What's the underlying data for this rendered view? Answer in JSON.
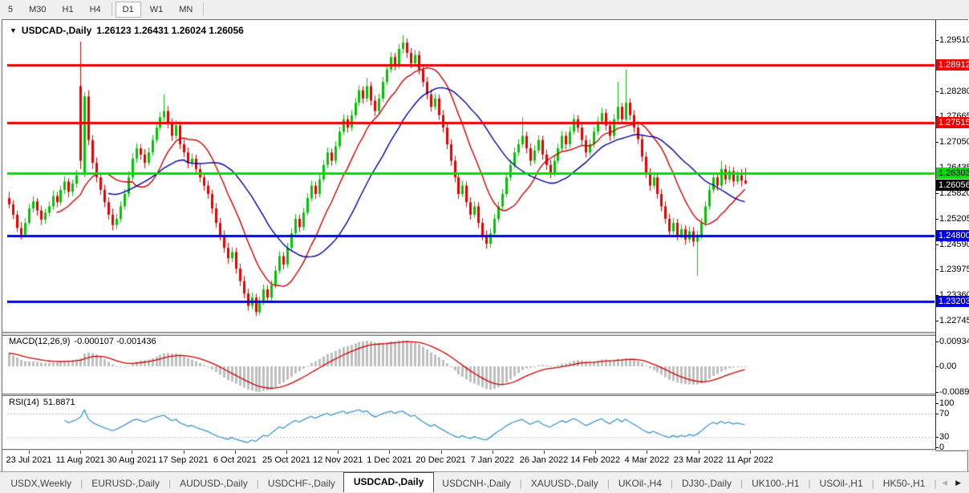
{
  "toolbar": {
    "timeframes": [
      {
        "label": "5",
        "active": false
      },
      {
        "label": "M30",
        "active": false
      },
      {
        "label": "H1",
        "active": false
      },
      {
        "label": "H4",
        "active": false
      },
      {
        "label": "D1",
        "active": true
      },
      {
        "label": "W1",
        "active": false
      },
      {
        "label": "MN",
        "active": false
      }
    ]
  },
  "chart": {
    "title_symbol": "USDCAD-,Daily",
    "title_ohlc": "1.26123 1.26431 1.26024 1.26056",
    "collapse_icon": "▼",
    "price_axis_ticks": [
      "1.29510",
      "1.28280",
      "1.27665",
      "1.27050",
      "1.26435",
      "1.25820",
      "1.25205",
      "1.24590",
      "1.23975",
      "1.23360",
      "1.22745"
    ],
    "price_badges": [
      {
        "text": "1.28912",
        "price": 1.28912,
        "bg": "#EE0000",
        "fg": "#FFFFFF"
      },
      {
        "text": "1.27515",
        "price": 1.27515,
        "bg": "#EE0000",
        "fg": "#FFFFFF"
      },
      {
        "text": "1.26303",
        "price": 1.26303,
        "bg": "#00DD00",
        "fg": "#000000"
      },
      {
        "text": "1.26056",
        "price": 1.26056,
        "bg": "#000000",
        "fg": "#FFFFFF"
      },
      {
        "text": "1.24800",
        "price": 1.248,
        "bg": "#0000EE",
        "fg": "#FFFFFF"
      },
      {
        "text": "1.23203",
        "price": 1.23203,
        "bg": "#0000EE",
        "fg": "#FFFFFF"
      }
    ]
  },
  "macd": {
    "name": "MACD(12,26,9)",
    "values": "-0.000107 -0.001436",
    "axis": [
      "0.009345",
      "0.00",
      "-0.008902"
    ],
    "histogram_color": "#BEBEBE",
    "signal_color": "#CC0000"
  },
  "rsi": {
    "name": "RSI(14)",
    "value": "51.8871",
    "axis": [
      "100",
      "70",
      "30",
      "0"
    ],
    "levels": [
      70,
      30
    ],
    "line_color": "#3E96D2"
  },
  "time_axis": {
    "labels": [
      "23 Jul 2021",
      "11 Aug 2021",
      "30 Aug 2021",
      "17 Sep 2021",
      "6 Oct 2021",
      "25 Oct 2021",
      "12 Nov 2021",
      "1 Dec 2021",
      "20 Dec 2021",
      "7 Jan 2022",
      "26 Jan 2022",
      "14 Feb 2022",
      "4 Mar 2022",
      "23 Mar 2022",
      "11 Apr 2022"
    ]
  },
  "tabs": {
    "items": [
      {
        "label": "USDX,Weekly",
        "active": false
      },
      {
        "label": "EURUSD-,Daily",
        "active": false
      },
      {
        "label": "AUDUSD-,Daily",
        "active": false
      },
      {
        "label": "USDCHF-,Daily",
        "active": false
      },
      {
        "label": "USDCAD-,Daily",
        "active": true
      },
      {
        "label": "USDCNH-,Daily",
        "active": false
      },
      {
        "label": "XAUUSD-,Daily",
        "active": false
      },
      {
        "label": "UKOil-,H4",
        "active": false
      },
      {
        "label": "DJ30-,Daily",
        "active": false
      },
      {
        "label": "UK100-,H1",
        "active": false
      },
      {
        "label": "USOil-,H1",
        "active": false
      },
      {
        "label": "HK50-,H1",
        "active": false
      }
    ],
    "scroll_left_icon": "◀",
    "scroll_right_icon": "▶"
  },
  "chart_data": {
    "type": "candlestick",
    "symbol": "USDCAD-",
    "timeframe": "Daily",
    "last_bar": {
      "open": "1.26123",
      "high": "1.26431",
      "low": "1.26024",
      "close": "1.26056"
    },
    "bull_color": "#00C400",
    "bear_color": "#E60000",
    "horizontal_levels": [
      {
        "price": 1.28912,
        "color": "#EE0000"
      },
      {
        "price": 1.27515,
        "color": "#EE0000"
      },
      {
        "price": 1.26303,
        "color": "#00DD00"
      },
      {
        "price": 1.248,
        "color": "#0000EE"
      },
      {
        "price": 1.23203,
        "color": "#0000EE"
      }
    ],
    "overlays": [
      {
        "name": "ma-fast",
        "type": "sma",
        "period": 13,
        "color": "#CC0000"
      },
      {
        "name": "ma-slow",
        "type": "sma",
        "period": 26,
        "color": "#000099"
      }
    ],
    "ylim": [
      1.22475,
      1.29955
    ],
    "macd_ylim": [
      -0.008902,
      0.009345
    ],
    "candles": [
      [
        1.257,
        1.2585,
        1.2545,
        1.2555
      ],
      [
        1.2555,
        1.2565,
        1.252,
        1.253
      ],
      [
        1.253,
        1.254,
        1.2488,
        1.2498
      ],
      [
        1.2498,
        1.2512,
        1.247,
        1.2482
      ],
      [
        1.2482,
        1.2522,
        1.2475,
        1.251
      ],
      [
        1.251,
        1.2555,
        1.2505,
        1.2545
      ],
      [
        1.2545,
        1.2575,
        1.2535,
        1.2562
      ],
      [
        1.2562,
        1.257,
        1.2528,
        1.254
      ],
      [
        1.254,
        1.2552,
        1.2505,
        1.2518
      ],
      [
        1.2518,
        1.2545,
        1.2508,
        1.2535
      ],
      [
        1.2535,
        1.2562,
        1.2525,
        1.255
      ],
      [
        1.255,
        1.2588,
        1.2542,
        1.2575
      ],
      [
        1.2575,
        1.2585,
        1.2548,
        1.256
      ],
      [
        1.256,
        1.26,
        1.2552,
        1.259
      ],
      [
        1.259,
        1.2622,
        1.258,
        1.261
      ],
      [
        1.261,
        1.2618,
        1.2572,
        1.2585
      ],
      [
        1.2585,
        1.2615,
        1.2575,
        1.2605
      ],
      [
        1.2605,
        1.2638,
        1.2595,
        1.2625
      ],
      [
        1.284,
        1.2947,
        1.264,
        1.266
      ],
      [
        1.263,
        1.2825,
        1.262,
        1.2815
      ],
      [
        1.2815,
        1.283,
        1.2698,
        1.271
      ],
      [
        1.271,
        1.2722,
        1.264,
        1.2655
      ],
      [
        1.2655,
        1.2668,
        1.2608,
        1.262
      ],
      [
        1.262,
        1.2632,
        1.2578,
        1.259
      ],
      [
        1.259,
        1.2602,
        1.2548,
        1.256
      ],
      [
        1.256,
        1.2572,
        1.2518,
        1.253
      ],
      [
        1.253,
        1.2545,
        1.2492,
        1.2505
      ],
      [
        1.2505,
        1.2532,
        1.2495,
        1.252
      ],
      [
        1.252,
        1.2562,
        1.2512,
        1.255
      ],
      [
        1.255,
        1.2592,
        1.2542,
        1.258
      ],
      [
        1.258,
        1.2635,
        1.2572,
        1.262
      ],
      [
        1.262,
        1.2678,
        1.2612,
        1.2665
      ],
      [
        1.2665,
        1.2702,
        1.2655,
        1.269
      ],
      [
        1.269,
        1.27,
        1.2662,
        1.2675
      ],
      [
        1.2675,
        1.2688,
        1.2642,
        1.2655
      ],
      [
        1.2655,
        1.2692,
        1.2648,
        1.268
      ],
      [
        1.268,
        1.2722,
        1.2672,
        1.271
      ],
      [
        1.271,
        1.2752,
        1.2702,
        1.274
      ],
      [
        1.274,
        1.2778,
        1.2732,
        1.2765
      ],
      [
        1.2765,
        1.282,
        1.2755,
        1.278
      ],
      [
        1.278,
        1.2792,
        1.2738,
        1.275
      ],
      [
        1.275,
        1.2762,
        1.2708,
        1.272
      ],
      [
        1.272,
        1.2758,
        1.2712,
        1.2745
      ],
      [
        1.2745,
        1.2755,
        1.2688,
        1.27
      ],
      [
        1.27,
        1.2712,
        1.2668,
        1.268
      ],
      [
        1.268,
        1.2692,
        1.2642,
        1.2655
      ],
      [
        1.2655,
        1.2678,
        1.2645,
        1.2665
      ],
      [
        1.2665,
        1.2675,
        1.2628,
        1.264
      ],
      [
        1.264,
        1.2652,
        1.2608,
        1.262
      ],
      [
        1.262,
        1.2632,
        1.2588,
        1.26
      ],
      [
        1.26,
        1.2612,
        1.2568,
        1.258
      ],
      [
        1.258,
        1.259,
        1.2532,
        1.2545
      ],
      [
        1.2545,
        1.2558,
        1.2498,
        1.251
      ],
      [
        1.251,
        1.2522,
        1.2468,
        1.248
      ],
      [
        1.248,
        1.2492,
        1.2438,
        1.245
      ],
      [
        1.245,
        1.2462,
        1.2412,
        1.2425
      ],
      [
        1.2425,
        1.2452,
        1.2415,
        1.244
      ],
      [
        1.244,
        1.245,
        1.2388,
        1.24
      ],
      [
        1.24,
        1.2412,
        1.2358,
        1.237
      ],
      [
        1.237,
        1.2382,
        1.2328,
        1.234
      ],
      [
        1.234,
        1.2352,
        1.2298,
        1.231
      ],
      [
        1.231,
        1.2342,
        1.2302,
        1.233
      ],
      [
        1.233,
        1.234,
        1.2285,
        1.2295
      ],
      [
        1.2295,
        1.2332,
        1.2288,
        1.232
      ],
      [
        1.232,
        1.2362,
        1.2312,
        1.235
      ],
      [
        1.235,
        1.236,
        1.2318,
        1.233
      ],
      [
        1.233,
        1.2372,
        1.2322,
        1.236
      ],
      [
        1.236,
        1.2407,
        1.2352,
        1.2395
      ],
      [
        1.2395,
        1.2442,
        1.2388,
        1.243
      ],
      [
        1.243,
        1.244,
        1.2398,
        1.241
      ],
      [
        1.241,
        1.2462,
        1.2402,
        1.245
      ],
      [
        1.245,
        1.2497,
        1.2442,
        1.2485
      ],
      [
        1.2485,
        1.2532,
        1.2478,
        1.252
      ],
      [
        1.252,
        1.253,
        1.2488,
        1.25
      ],
      [
        1.25,
        1.2547,
        1.2492,
        1.2535
      ],
      [
        1.2535,
        1.2582,
        1.2528,
        1.257
      ],
      [
        1.257,
        1.2612,
        1.2562,
        1.26
      ],
      [
        1.26,
        1.261,
        1.2568,
        1.258
      ],
      [
        1.258,
        1.2627,
        1.2572,
        1.2615
      ],
      [
        1.2615,
        1.2662,
        1.2608,
        1.265
      ],
      [
        1.265,
        1.2692,
        1.2642,
        1.268
      ],
      [
        1.268,
        1.269,
        1.2648,
        1.266
      ],
      [
        1.266,
        1.2707,
        1.2652,
        1.2695
      ],
      [
        1.2695,
        1.2742,
        1.2688,
        1.273
      ],
      [
        1.273,
        1.2772,
        1.2722,
        1.276
      ],
      [
        1.276,
        1.277,
        1.2728,
        1.274
      ],
      [
        1.274,
        1.2782,
        1.2732,
        1.277
      ],
      [
        1.277,
        1.2812,
        1.2762,
        1.28
      ],
      [
        1.28,
        1.2842,
        1.2792,
        1.283
      ],
      [
        1.283,
        1.284,
        1.2798,
        1.281
      ],
      [
        1.281,
        1.286,
        1.2802,
        1.284
      ],
      [
        1.284,
        1.285,
        1.2793,
        1.2805
      ],
      [
        1.2805,
        1.2817,
        1.2768,
        1.278
      ],
      [
        1.278,
        1.2822,
        1.2772,
        1.281
      ],
      [
        1.281,
        1.2862,
        1.2802,
        1.285
      ],
      [
        1.285,
        1.2892,
        1.2842,
        1.288
      ],
      [
        1.288,
        1.2922,
        1.2872,
        1.291
      ],
      [
        1.291,
        1.292,
        1.2878,
        1.289
      ],
      [
        1.289,
        1.2942,
        1.2882,
        1.293
      ],
      [
        1.293,
        1.2963,
        1.292,
        1.2945
      ],
      [
        1.2945,
        1.2955,
        1.2908,
        1.292
      ],
      [
        1.292,
        1.2932,
        1.2883,
        1.2895
      ],
      [
        1.2895,
        1.2927,
        1.2887,
        1.2915
      ],
      [
        1.2915,
        1.2925,
        1.2868,
        1.288
      ],
      [
        1.288,
        1.2892,
        1.2838,
        1.285
      ],
      [
        1.285,
        1.2862,
        1.2808,
        1.282
      ],
      [
        1.282,
        1.2832,
        1.2778,
        1.279
      ],
      [
        1.279,
        1.2822,
        1.2782,
        1.281
      ],
      [
        1.281,
        1.282,
        1.2758,
        1.277
      ],
      [
        1.277,
        1.2782,
        1.2728,
        1.274
      ],
      [
        1.274,
        1.2752,
        1.2688,
        1.27
      ],
      [
        1.27,
        1.2712,
        1.2648,
        1.266
      ],
      [
        1.266,
        1.2672,
        1.2608,
        1.262
      ],
      [
        1.262,
        1.2632,
        1.2568,
        1.258
      ],
      [
        1.258,
        1.2612,
        1.2572,
        1.26
      ],
      [
        1.26,
        1.261,
        1.2548,
        1.256
      ],
      [
        1.256,
        1.2572,
        1.2518,
        1.253
      ],
      [
        1.253,
        1.2562,
        1.2522,
        1.255
      ],
      [
        1.255,
        1.256,
        1.2498,
        1.251
      ],
      [
        1.251,
        1.2522,
        1.2468,
        1.248
      ],
      [
        1.248,
        1.2492,
        1.2448,
        1.246
      ],
      [
        1.246,
        1.2497,
        1.245,
        1.2485
      ],
      [
        1.2485,
        1.2532,
        1.2478,
        1.252
      ],
      [
        1.252,
        1.2562,
        1.2512,
        1.255
      ],
      [
        1.255,
        1.2592,
        1.2542,
        1.258
      ],
      [
        1.258,
        1.2632,
        1.2572,
        1.262
      ],
      [
        1.262,
        1.2662,
        1.2612,
        1.265
      ],
      [
        1.265,
        1.2692,
        1.2642,
        1.268
      ],
      [
        1.268,
        1.2712,
        1.2672,
        1.27
      ],
      [
        1.27,
        1.2765,
        1.2692,
        1.272
      ],
      [
        1.272,
        1.273,
        1.2678,
        1.269
      ],
      [
        1.269,
        1.2702,
        1.2648,
        1.266
      ],
      [
        1.266,
        1.2697,
        1.2652,
        1.2685
      ],
      [
        1.2685,
        1.2722,
        1.2678,
        1.271
      ],
      [
        1.271,
        1.272,
        1.2663,
        1.2675
      ],
      [
        1.2675,
        1.2687,
        1.2638,
        1.265
      ],
      [
        1.265,
        1.2662,
        1.2618,
        1.263
      ],
      [
        1.263,
        1.2672,
        1.2622,
        1.266
      ],
      [
        1.266,
        1.2702,
        1.2652,
        1.269
      ],
      [
        1.269,
        1.2732,
        1.2682,
        1.272
      ],
      [
        1.272,
        1.273,
        1.2688,
        1.27
      ],
      [
        1.27,
        1.2742,
        1.2692,
        1.273
      ],
      [
        1.273,
        1.2772,
        1.2722,
        1.276
      ],
      [
        1.276,
        1.277,
        1.2728,
        1.274
      ],
      [
        1.274,
        1.2752,
        1.2698,
        1.271
      ],
      [
        1.271,
        1.2722,
        1.2668,
        1.268
      ],
      [
        1.268,
        1.2712,
        1.2672,
        1.27
      ],
      [
        1.27,
        1.2742,
        1.2692,
        1.273
      ],
      [
        1.273,
        1.2767,
        1.2722,
        1.2755
      ],
      [
        1.2755,
        1.2787,
        1.2748,
        1.2775
      ],
      [
        1.2775,
        1.2785,
        1.2733,
        1.2745
      ],
      [
        1.2745,
        1.2757,
        1.2708,
        1.272
      ],
      [
        1.272,
        1.2772,
        1.2712,
        1.276
      ],
      [
        1.276,
        1.285,
        1.2752,
        1.279
      ],
      [
        1.279,
        1.28,
        1.2748,
        1.276
      ],
      [
        1.276,
        1.288,
        1.2752,
        1.28
      ],
      [
        1.28,
        1.281,
        1.2758,
        1.277
      ],
      [
        1.277,
        1.2782,
        1.2728,
        1.274
      ],
      [
        1.274,
        1.2755,
        1.27,
        1.2712
      ],
      [
        1.2712,
        1.2722,
        1.2658,
        1.267
      ],
      [
        1.267,
        1.2682,
        1.2618,
        1.263
      ],
      [
        1.263,
        1.2642,
        1.2588,
        1.26
      ],
      [
        1.26,
        1.2632,
        1.2592,
        1.262
      ],
      [
        1.262,
        1.263,
        1.2568,
        1.258
      ],
      [
        1.258,
        1.2592,
        1.2538,
        1.255
      ],
      [
        1.255,
        1.2562,
        1.2508,
        1.252
      ],
      [
        1.252,
        1.2532,
        1.2478,
        1.249
      ],
      [
        1.249,
        1.2522,
        1.2482,
        1.251
      ],
      [
        1.251,
        1.252,
        1.2468,
        1.248
      ],
      [
        1.248,
        1.2507,
        1.2472,
        1.2495
      ],
      [
        1.2495,
        1.2505,
        1.2458,
        1.247
      ],
      [
        1.247,
        1.2502,
        1.2462,
        1.249
      ],
      [
        1.249,
        1.25,
        1.2453,
        1.2465
      ],
      [
        1.2465,
        1.2492,
        1.2382,
        1.248
      ],
      [
        1.248,
        1.2522,
        1.2472,
        1.251
      ],
      [
        1.251,
        1.2562,
        1.2502,
        1.255
      ],
      [
        1.255,
        1.2602,
        1.2542,
        1.259
      ],
      [
        1.259,
        1.2632,
        1.2582,
        1.262
      ],
      [
        1.262,
        1.263,
        1.2588,
        1.26
      ],
      [
        1.26,
        1.266,
        1.2592,
        1.264
      ],
      [
        1.264,
        1.265,
        1.2603,
        1.2615
      ],
      [
        1.2615,
        1.2647,
        1.2607,
        1.2635
      ],
      [
        1.2635,
        1.2645,
        1.2598,
        1.261
      ],
      [
        1.261,
        1.2637,
        1.2602,
        1.2625
      ],
      [
        1.2625,
        1.264,
        1.2598,
        1.2612
      ],
      [
        1.26123,
        1.26431,
        1.26024,
        1.26056
      ]
    ]
  }
}
